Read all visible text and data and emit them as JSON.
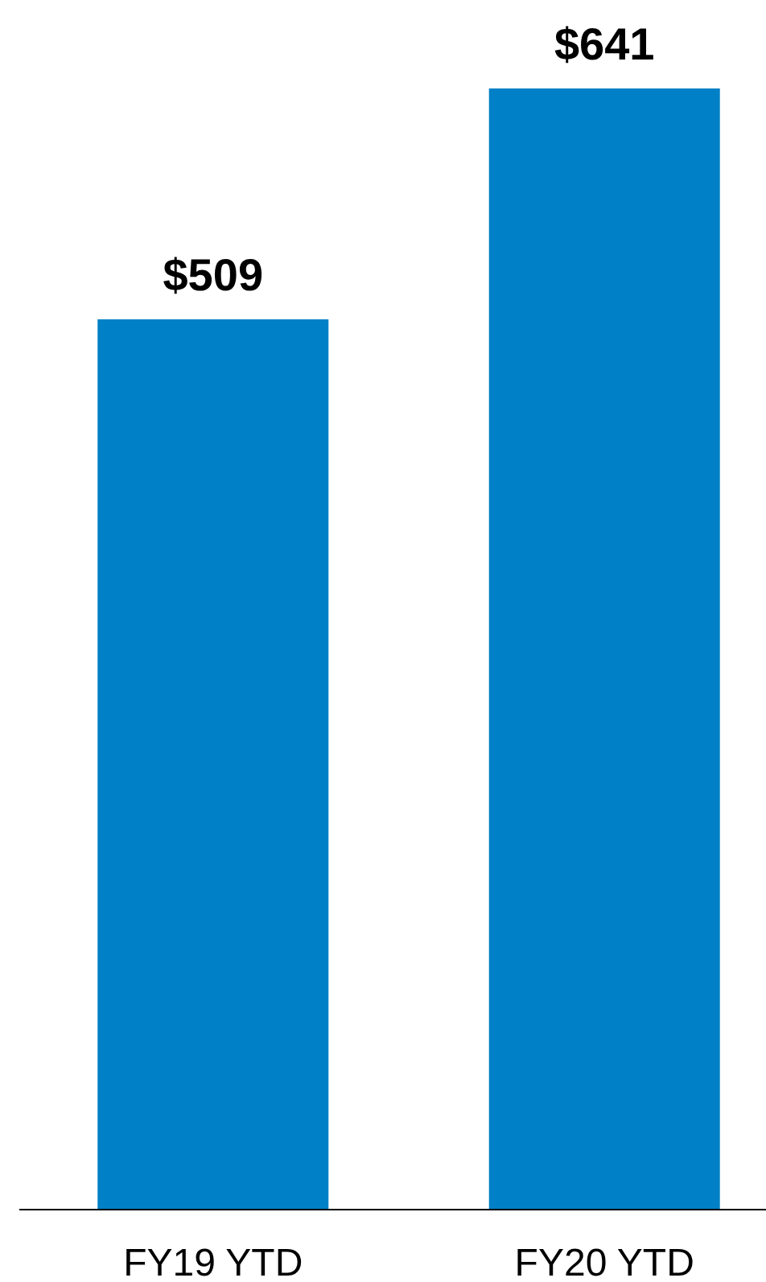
{
  "chart_data": {
    "type": "bar",
    "categories": [
      "FY19 YTD",
      "FY20 YTD"
    ],
    "values": [
      509,
      641
    ],
    "value_labels": [
      "$509",
      "$641"
    ],
    "color": "#0080c6"
  }
}
